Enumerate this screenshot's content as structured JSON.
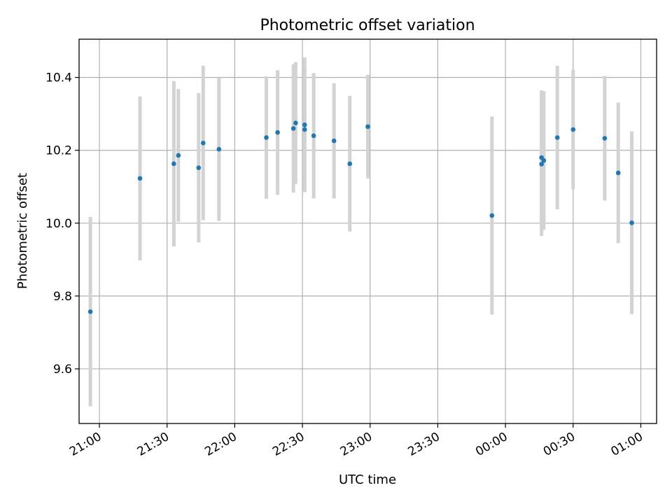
{
  "chart_data": {
    "type": "scatter",
    "title": "Photometric offset variation",
    "xlabel": "UTC time",
    "ylabel": "Photometric offset",
    "grid": true,
    "legend": "none",
    "xlim": [
      "20:51",
      "01:07"
    ],
    "ylim": [
      9.45,
      10.505
    ],
    "x_ticks": [
      "21:00",
      "21:30",
      "22:00",
      "22:30",
      "23:00",
      "23:30",
      "00:00",
      "00:30",
      "01:00"
    ],
    "y_ticks": [
      9.6,
      9.8,
      10.0,
      10.2,
      10.4
    ],
    "y_tick_labels": [
      "9.6",
      "9.8",
      "10.0",
      "10.2",
      "10.4"
    ],
    "colors": {
      "points": "#1f77b4",
      "error_bars": "#d3d3d3"
    },
    "points": [
      {
        "x": "20:56",
        "y": 9.757,
        "err": 0.26
      },
      {
        "x": "21:18",
        "y": 10.123,
        "err": 0.225
      },
      {
        "x": "21:33",
        "y": 10.163,
        "err": 0.227
      },
      {
        "x": "21:35",
        "y": 10.186,
        "err": 0.182
      },
      {
        "x": "21:44",
        "y": 10.152,
        "err": 0.205
      },
      {
        "x": "21:46",
        "y": 10.22,
        "err": 0.212
      },
      {
        "x": "21:53",
        "y": 10.203,
        "err": 0.197
      },
      {
        "x": "22:14",
        "y": 10.235,
        "err": 0.168
      },
      {
        "x": "22:19",
        "y": 10.249,
        "err": 0.171
      },
      {
        "x": "22:26",
        "y": 10.26,
        "err": 0.176
      },
      {
        "x": "22:27",
        "y": 10.275,
        "err": 0.167
      },
      {
        "x": "22:31",
        "y": 10.257,
        "err": 0.172
      },
      {
        "x": "22:31",
        "y": 10.27,
        "err": 0.185
      },
      {
        "x": "22:35",
        "y": 10.24,
        "err": 0.172
      },
      {
        "x": "22:44",
        "y": 10.226,
        "err": 0.158
      },
      {
        "x": "22:51",
        "y": 10.163,
        "err": 0.186
      },
      {
        "x": "22:59",
        "y": 10.265,
        "err": 0.142
      },
      {
        "x": "23:54",
        "y": 10.021,
        "err": 0.272
      },
      {
        "x": "00:16",
        "y": 10.18,
        "err": 0.185
      },
      {
        "x": "00:16",
        "y": 10.162,
        "err": 0.197
      },
      {
        "x": "00:17",
        "y": 10.172,
        "err": 0.19
      },
      {
        "x": "00:23",
        "y": 10.235,
        "err": 0.197
      },
      {
        "x": "00:30",
        "y": 10.257,
        "err": 0.164
      },
      {
        "x": "00:44",
        "y": 10.233,
        "err": 0.171
      },
      {
        "x": "00:50",
        "y": 10.138,
        "err": 0.193
      },
      {
        "x": "00:56",
        "y": 10.001,
        "err": 0.251
      }
    ]
  }
}
